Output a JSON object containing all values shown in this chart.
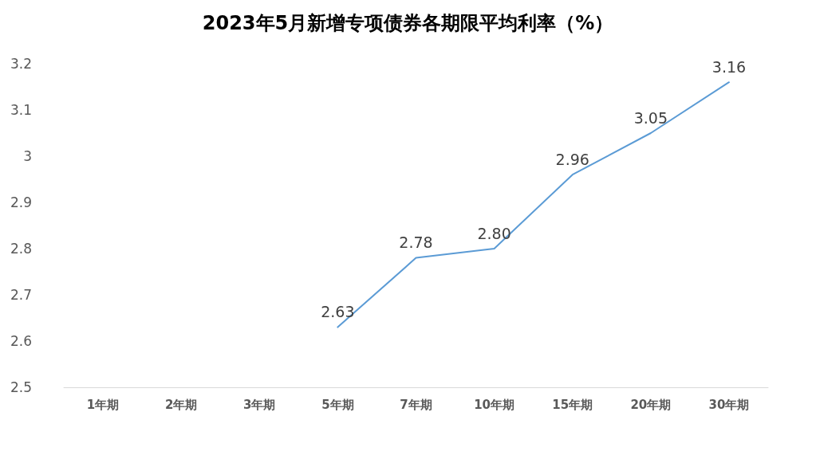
{
  "chart_data": {
    "type": "line",
    "title": "2023年5月新增专项债券各期限平均利率（%）",
    "categories": [
      "1年期",
      "2年期",
      "3年期",
      "5年期",
      "7年期",
      "10年期",
      "15年期",
      "20年期",
      "30年期"
    ],
    "series": [
      {
        "color": "#5b9bd5",
        "values": [
          null,
          null,
          null,
          2.63,
          2.78,
          2.8,
          2.96,
          3.05,
          3.16
        ],
        "value_labels": [
          null,
          null,
          null,
          "2.63",
          "2.78",
          "2.80",
          "2.96",
          "3.05",
          "3.16"
        ]
      }
    ],
    "ylim": [
      2.5,
      3.2
    ],
    "yticks": [
      2.5,
      2.6,
      2.7,
      2.8,
      2.9,
      3,
      3.1,
      3.2
    ],
    "marker": "none",
    "line_style": "solid"
  }
}
